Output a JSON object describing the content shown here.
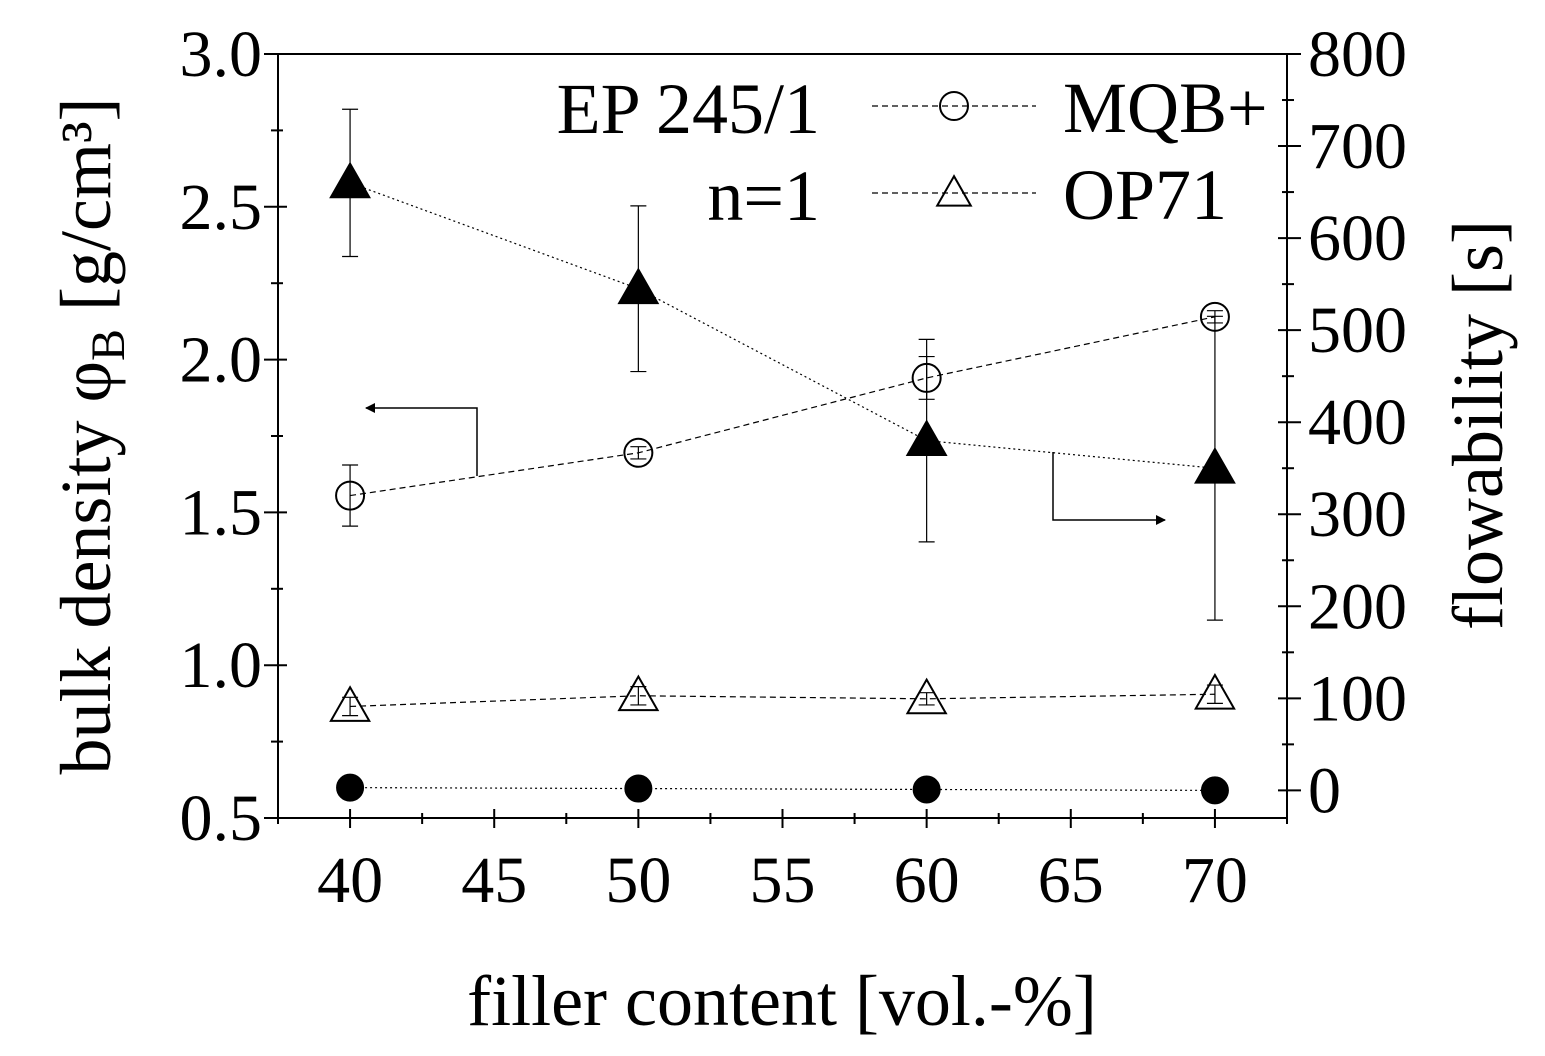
{
  "chart_data": {
    "type": "scatter",
    "x": [
      40,
      50,
      60,
      70
    ],
    "xlabel": "filler content [vol.-%]",
    "xlim": [
      37.5,
      72.5
    ],
    "x_ticks": [
      40,
      45,
      50,
      55,
      60,
      65,
      70
    ],
    "x_tick_labels": [
      "40",
      "45",
      "50",
      "55",
      "60",
      "65",
      "70"
    ],
    "y_left": {
      "label_main": "bulk density φ",
      "label_sub": "B",
      "label_unit": " [g/cm³]",
      "lim": [
        0.5,
        3.0
      ],
      "ticks": [
        0.5,
        1.0,
        1.5,
        2.0,
        2.5,
        3.0
      ],
      "tick_labels": [
        "0.5",
        "1.0",
        "1.5",
        "2.0",
        "2.5",
        "3.0"
      ]
    },
    "y_right": {
      "label": "flowability [s]",
      "lim": [
        -30,
        800
      ],
      "ticks": [
        0,
        100,
        200,
        300,
        400,
        500,
        600,
        700,
        800
      ],
      "tick_labels": [
        "0",
        "100",
        "200",
        "300",
        "400",
        "500",
        "600",
        "700",
        "800"
      ]
    },
    "series": [
      {
        "axis": "left",
        "marker": "circle",
        "fill": "open",
        "line": "dashed",
        "values": [
          1.555,
          1.695,
          1.94,
          2.14
        ],
        "errors": [
          0.1,
          0.02,
          0.07,
          0.02
        ]
      },
      {
        "axis": "left",
        "marker": "triangle",
        "fill": "open",
        "line": "dashed",
        "values": [
          0.865,
          0.9,
          0.89,
          0.905
        ],
        "errors": [
          0.03,
          0.03,
          0.02,
          0.03
        ]
      },
      {
        "axis": "right",
        "marker": "triangle",
        "fill": "filled",
        "line": "dotted",
        "values": [
          660,
          545,
          380,
          350
        ],
        "errors": [
          80,
          90,
          110,
          165
        ]
      },
      {
        "axis": "right",
        "marker": "circle",
        "fill": "filled",
        "line": "dotted",
        "values": [
          3,
          2,
          1,
          0
        ],
        "errors": [
          0,
          0,
          0,
          0
        ]
      }
    ],
    "annotations": [
      {
        "text": "EP 245/1"
      },
      {
        "text": "n=1"
      }
    ],
    "legend": {
      "placement": "top-right",
      "entries": [
        {
          "name": "MQB+",
          "marker": "circle",
          "fill": "open"
        },
        {
          "name": "OP71",
          "marker": "triangle",
          "fill": "open"
        }
      ]
    },
    "grid": false
  }
}
